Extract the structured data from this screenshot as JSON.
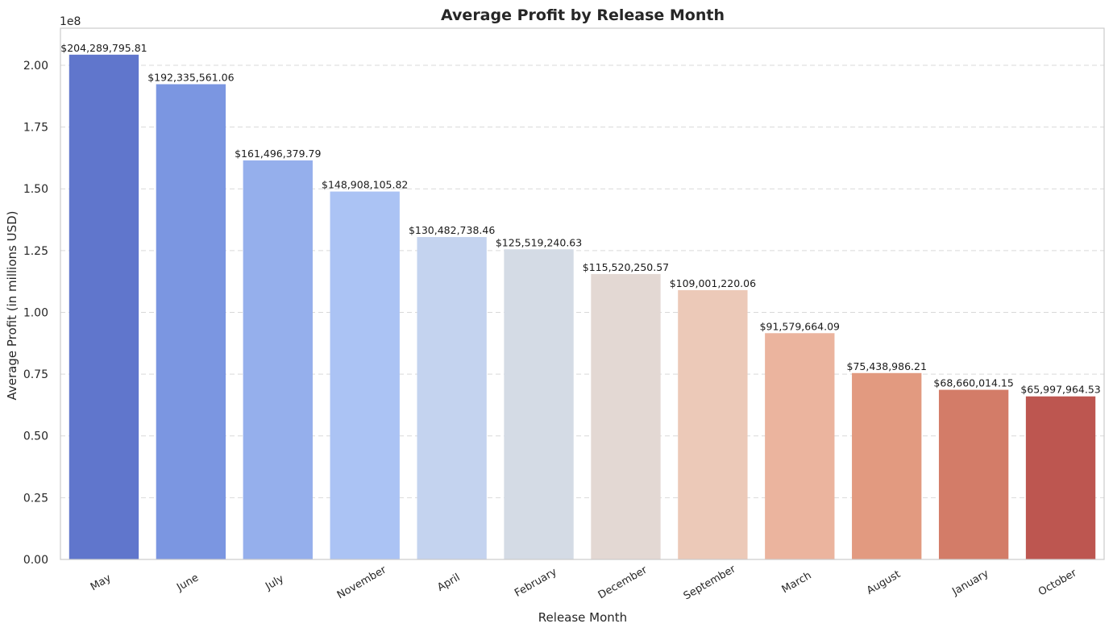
{
  "chart_data": {
    "type": "bar",
    "title": "Average Profit by Release Month",
    "xlabel": "Release Month",
    "ylabel": "Average Profit (in millions USD)",
    "y_offset_text": "1e8",
    "ylim": [
      0,
      2.15
    ],
    "grid": "horizontal-dashed",
    "categories": [
      "May",
      "June",
      "July",
      "November",
      "April",
      "February",
      "December",
      "September",
      "March",
      "August",
      "January",
      "October"
    ],
    "values": [
      204289795.81,
      192335561.06,
      161496379.79,
      148908105.82,
      130482738.46,
      125519240.63,
      115520250.57,
      109001220.06,
      91579664.09,
      75438986.21,
      68660014.15,
      65997964.53
    ],
    "value_labels": [
      "$204,289,795.81",
      "$192,335,561.06",
      "$161,496,379.79",
      "$148,908,105.82",
      "$130,482,738.46",
      "$125,519,240.63",
      "$115,520,250.57",
      "$109,001,220.06",
      "$91,579,664.09",
      "$75,438,986.21",
      "$68,660,014.15",
      "$65,997,964.53"
    ],
    "yticks": [
      0,
      0.25,
      0.5,
      0.75,
      1.0,
      1.25,
      1.5,
      1.75,
      2.0
    ],
    "ytick_labels": [
      "0.00",
      "0.25",
      "0.50",
      "0.75",
      "1.00",
      "1.25",
      "1.50",
      "1.75",
      "2.00"
    ],
    "colors": [
      "#6076cc",
      "#7b96e1",
      "#95afec",
      "#abc3f4",
      "#c4d3ef",
      "#d4dbe5",
      "#e3d8d3",
      "#ecc9b8",
      "#ebb49e",
      "#e29a80",
      "#d37c68",
      "#bd5650"
    ],
    "palette": "coolwarm"
  }
}
